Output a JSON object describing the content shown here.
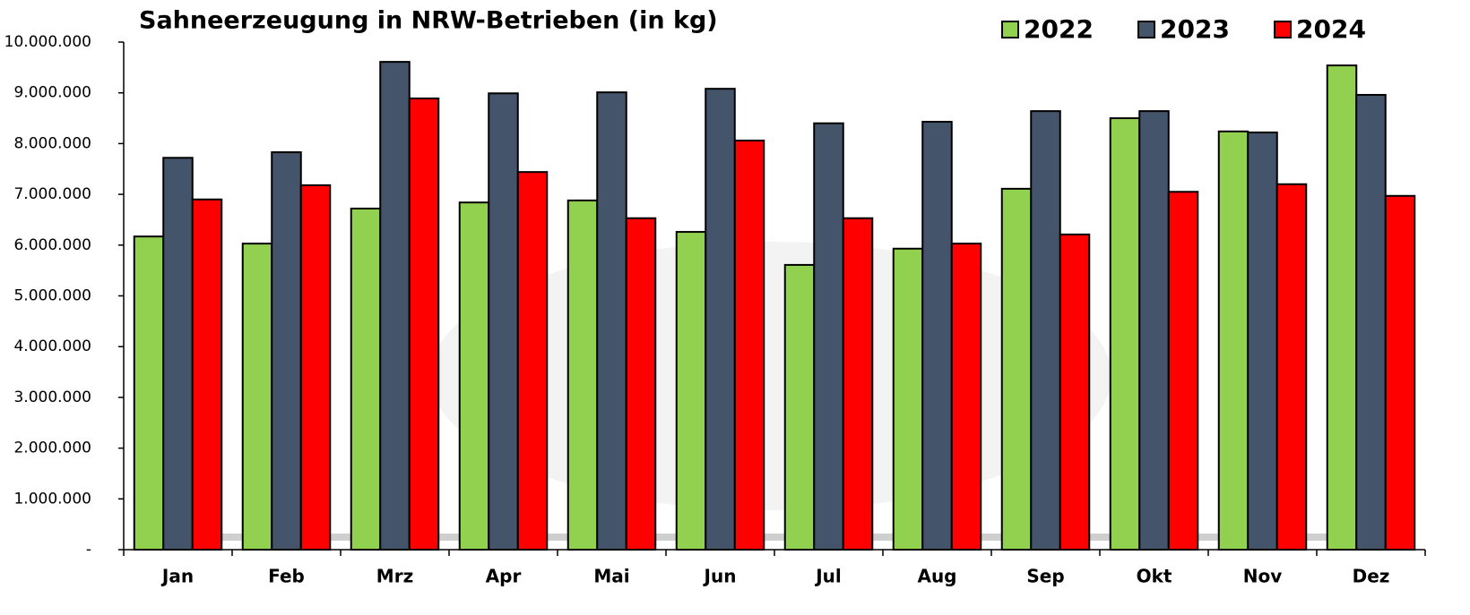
{
  "chart_data": {
    "type": "bar",
    "title": "Sahneerzeugung in NRW-Betrieben (in kg)",
    "categories": [
      "Jan",
      "Feb",
      "Mrz",
      "Apr",
      "Mai",
      "Jun",
      "Jul",
      "Aug",
      "Sep",
      "Okt",
      "Nov",
      "Dez"
    ],
    "series": [
      {
        "name": "2022",
        "color": "#92d050",
        "values": [
          6170000,
          6030000,
          6720000,
          6840000,
          6880000,
          6260000,
          5610000,
          5930000,
          7110000,
          8500000,
          8240000,
          9540000
        ]
      },
      {
        "name": "2023",
        "color": "#44546a",
        "values": [
          7720000,
          7830000,
          9610000,
          8990000,
          9010000,
          9080000,
          8400000,
          8430000,
          8640000,
          8640000,
          8220000,
          8960000
        ]
      },
      {
        "name": "2024",
        "color": "#ff0000",
        "values": [
          6900000,
          7180000,
          8890000,
          7440000,
          6530000,
          8060000,
          6530000,
          6030000,
          6210000,
          7050000,
          7200000,
          6970000
        ]
      }
    ],
    "ylim": [
      0,
      10000000
    ],
    "yticks": [
      {
        "value": 0,
        "label": "-"
      },
      {
        "value": 1000000,
        "label": "1.000.000"
      },
      {
        "value": 2000000,
        "label": "2.000.000"
      },
      {
        "value": 3000000,
        "label": "3.000.000"
      },
      {
        "value": 4000000,
        "label": "4.000.000"
      },
      {
        "value": 5000000,
        "label": "5.000.000"
      },
      {
        "value": 6000000,
        "label": "6.000.000"
      },
      {
        "value": 7000000,
        "label": "7.000.000"
      },
      {
        "value": 8000000,
        "label": "8.000.000"
      },
      {
        "value": 9000000,
        "label": "9.000.000"
      },
      {
        "value": 10000000,
        "label": "10.000.000"
      }
    ],
    "legend": "top-right"
  }
}
